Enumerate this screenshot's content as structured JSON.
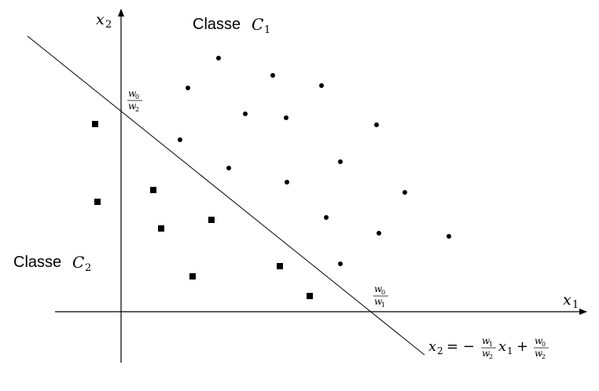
{
  "axes": {
    "x_label": "x",
    "x_label_sub": "1",
    "y_label": "x",
    "y_label_sub": "2"
  },
  "classes": {
    "c1": {
      "prefix": "Classe",
      "symbol": "C",
      "sub": "1"
    },
    "c2": {
      "prefix": "Classe",
      "symbol": "C",
      "sub": "2"
    }
  },
  "intercepts": {
    "y": {
      "num": "w",
      "num_sub": "0",
      "den": "w",
      "den_sub": "2"
    },
    "x": {
      "num": "w",
      "num_sub": "0",
      "den": "w",
      "den_sub": "1"
    }
  },
  "equation": {
    "lhs": "x",
    "lhs_sub": "2",
    "eq": "= −",
    "f1_num": "w",
    "f1_num_sub": "1",
    "f1_den": "w",
    "f1_den_sub": "2",
    "var": "x",
    "var_sub": "1",
    "plus": "+",
    "f2_num": "w",
    "f2_num_sub": "0",
    "f2_den": "w",
    "f2_den_sub": "2"
  },
  "colors": {
    "ink": "#000000",
    "background": "#ffffff"
  }
}
